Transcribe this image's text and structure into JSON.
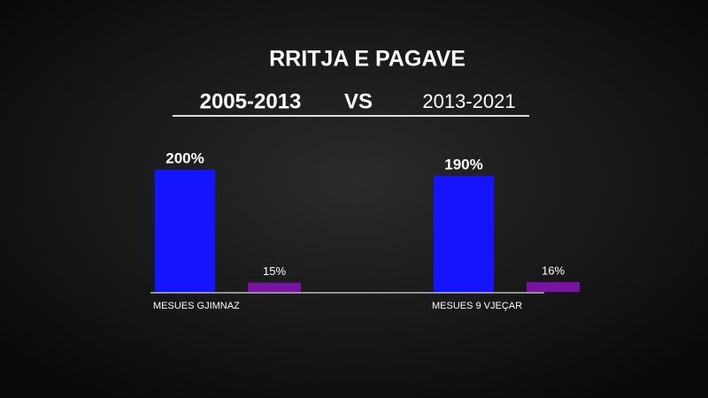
{
  "chart_data": {
    "type": "bar",
    "title": "RRITJA E PAGAVE",
    "periods": [
      "2005-2013",
      "2013-2021"
    ],
    "vs_label": "VS",
    "categories": [
      "MESUES GJIMNAZ",
      "MESUES 9 VJEÇAR"
    ],
    "series": [
      {
        "color": "#1414ff",
        "values": [
          200,
          190
        ],
        "value_labels": [
          "200%",
          "190%"
        ]
      },
      {
        "color": "#7a12a4",
        "values": [
          15,
          16
        ],
        "value_labels": [
          "15%",
          "16%"
        ]
      }
    ]
  }
}
